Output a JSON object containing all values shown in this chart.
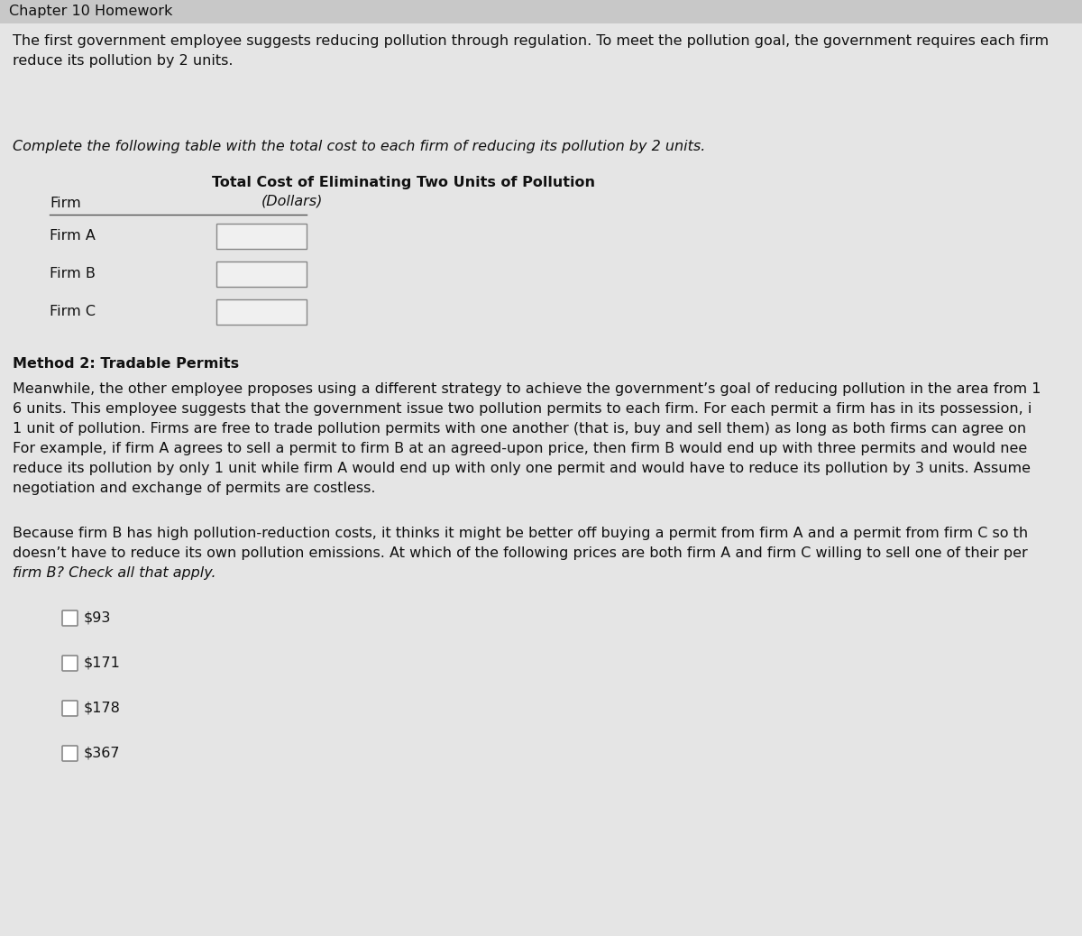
{
  "bg_color": "#e5e5e5",
  "header_text": "Chapter 10 Homework",
  "header_bg": "#c8c8c8",
  "header_color": "#111111",
  "header_fontsize": 11.5,
  "para1_line1": "The first government employee suggests reducing pollution through regulation. To meet the pollution goal, the government requires each firm",
  "para1_line2": "reduce its pollution by 2 units.",
  "para1_fontsize": 11.5,
  "italic_instruction": "Complete the following table with the total cost to each firm of reducing its pollution by 2 units.",
  "italic_fontsize": 11.5,
  "table_col1_header": "Firm",
  "table_col2_header_line1": "Total Cost of Eliminating Two Units of Pollution",
  "table_col2_header_line2": "(Dollars)",
  "table_rows": [
    "Firm A",
    "Firm B",
    "Firm C"
  ],
  "table_fontsize": 11.5,
  "method2_header": "Method 2: Tradable Permits",
  "method2_fontsize": 11.5,
  "method2_lines": [
    "Meanwhile, the other employee proposes using a different strategy to achieve the government’s goal of reducing pollution in the area from 1",
    "6 units. This employee suggests that the government issue two pollution permits to each firm. For each permit a firm has in its possession, i",
    "1 unit of pollution. Firms are free to trade pollution permits with one another (that is, buy and sell them) as long as both firms can agree on",
    "For example, if firm A agrees to sell a permit to firm B at an agreed-upon price, then firm B would end up with three permits and would nee",
    "reduce its pollution by only 1 unit while firm A would end up with only one permit and would have to reduce its pollution by 3 units. Assume",
    "negotiation and exchange of permits are costless."
  ],
  "question_lines": [
    "Because firm B has high pollution-reduction costs, it thinks it might be better off buying a permit from firm A and a permit from firm C so th",
    "doesn’t have to reduce its own pollution emissions. At which of the following prices are both firm A and firm C willing to sell one of their per",
    "firm B? Check all that apply."
  ],
  "question_italic_last": true,
  "checkbox_options": [
    "$93",
    "$171",
    "$178",
    "$367"
  ],
  "text_color": "#111111",
  "line_color": "#555555",
  "checkbox_border": "#888888",
  "input_box_fill": "#f0f0f0",
  "input_box_border": "#888888"
}
